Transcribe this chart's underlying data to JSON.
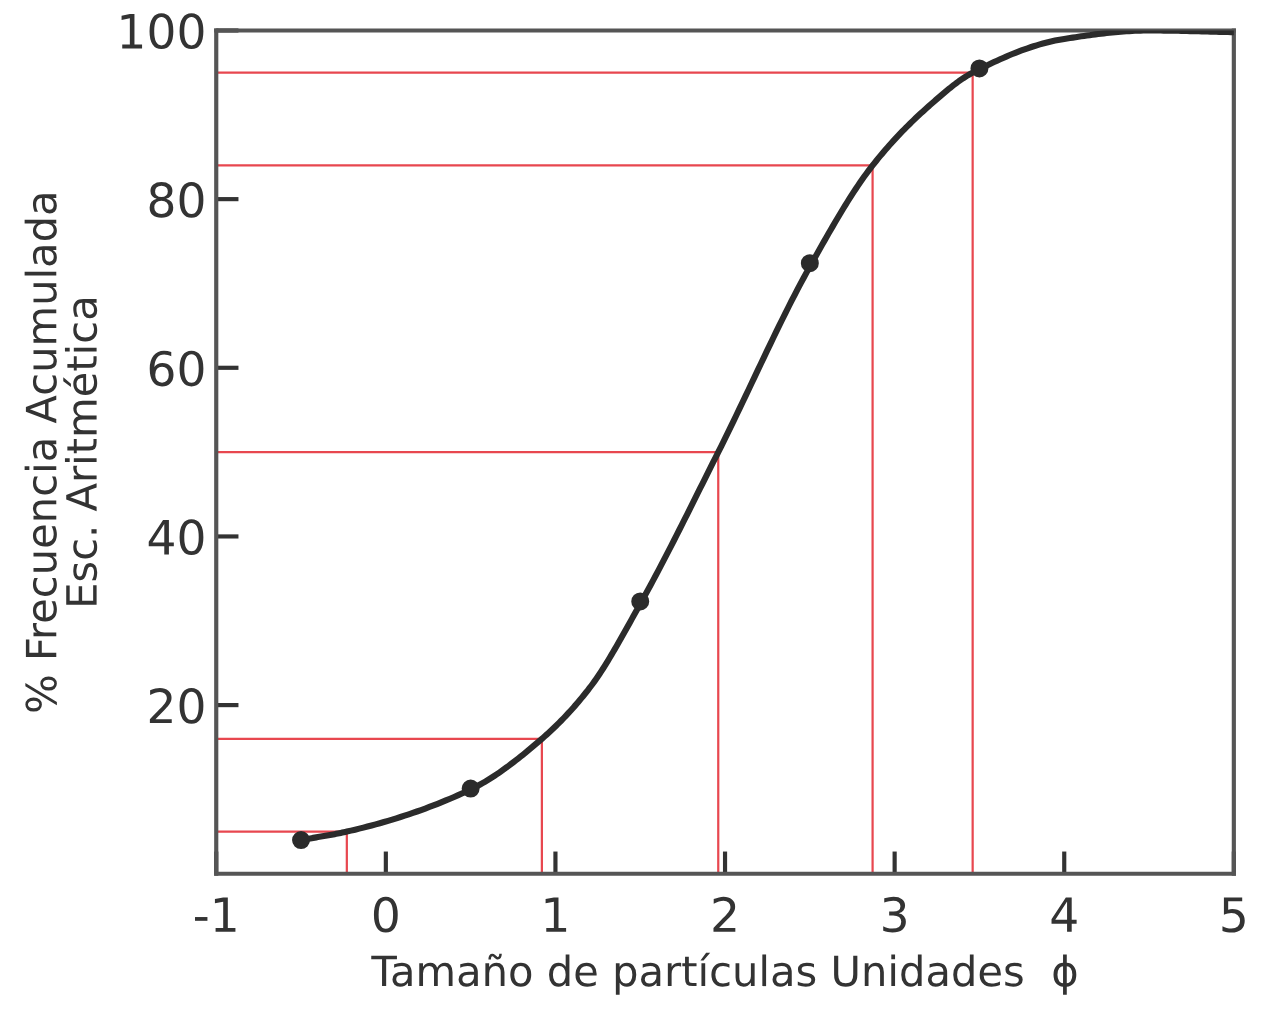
{
  "chart_data": {
    "type": "line",
    "xlabel": "Tamaño de partículas Unidades  ϕ",
    "ylabel": "% Frecuencia Acumulada\nEsc. Aritmética",
    "xlim": [
      -1,
      5
    ],
    "ylim": [
      0,
      100
    ],
    "xticks": [
      -1,
      0,
      1,
      2,
      3,
      4,
      5
    ],
    "yticks": [
      20,
      40,
      60,
      80,
      100
    ],
    "grid": false,
    "legend": false,
    "series": [
      {
        "color": "#e8474f",
        "x": [
          -1,
          -0.23,
          -0.23
        ],
        "values": [
          5,
          5,
          0
        ]
      },
      {
        "color": "#e8474f",
        "x": [
          -1,
          0.92,
          0.92
        ],
        "values": [
          16,
          16,
          0
        ]
      },
      {
        "color": "#e8474f",
        "x": [
          -1,
          1.96,
          1.96
        ],
        "values": [
          50,
          50,
          0
        ]
      },
      {
        "color": "#e8474f",
        "x": [
          -1,
          2.87,
          2.87
        ],
        "values": [
          84,
          84,
          0
        ]
      },
      {
        "color": "#e8474f",
        "x": [
          -1,
          3.46,
          3.46
        ],
        "values": [
          95,
          95,
          0
        ]
      },
      {
        "color": "#2b2b2b",
        "x": [
          -0.5,
          -0.23,
          0.5,
          0.92,
          1.2,
          1.5,
          1.96,
          2.5,
          2.87,
          3.2,
          3.46,
          4,
          4.5,
          5
        ],
        "values": [
          4,
          5,
          10,
          16,
          22,
          32,
          50,
          72,
          84,
          91,
          95,
          99,
          100,
          99.8
        ]
      },
      {
        "type": "scatter",
        "color": "#2b2b2b",
        "marker": "circle",
        "x": [
          -0.5,
          0.5,
          1.5,
          2.5,
          3.5
        ],
        "values": [
          4,
          10.1,
          32.3,
          72.4,
          95.5
        ]
      }
    ]
  }
}
